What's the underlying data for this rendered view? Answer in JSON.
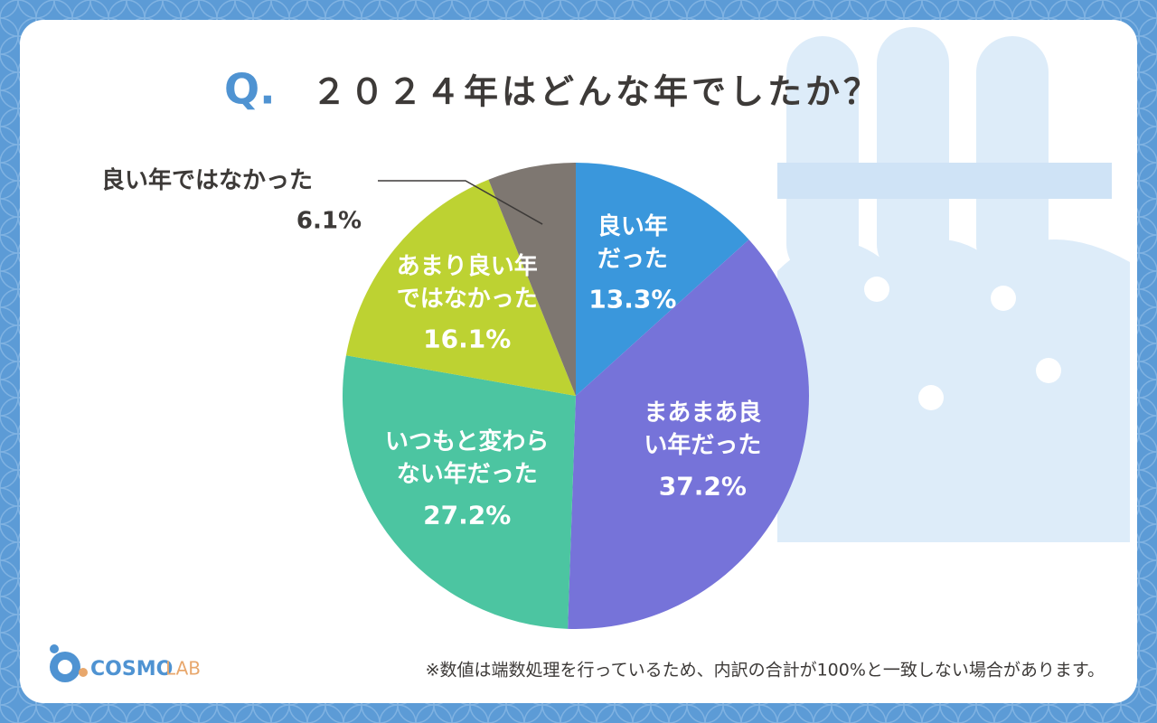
{
  "chart_data": {
    "type": "pie",
    "title_prefix": "Q.",
    "title": "２０２４年はどんな年でしたか？",
    "categories": [
      "良い年だった",
      "まあまあ良い年だった",
      "いつもと変わらない年だった",
      "あまり良い年ではなかった",
      "良い年ではなかった"
    ],
    "values": [
      13.3,
      37.2,
      27.2,
      16.1,
      6.1
    ],
    "value_labels": [
      "13.3%",
      "37.2%",
      "27.2%",
      "16.1%",
      "6.1%"
    ],
    "colors": [
      "#3a97dc",
      "#7673d9",
      "#4cc5a1",
      "#bdd232",
      "#7e7771"
    ],
    "note": "※数値は端数処理を行っているため、内訳の合計が100%と一致しない場合があります。"
  },
  "logo": {
    "text": "COSMO",
    "suffix": "LAB"
  }
}
